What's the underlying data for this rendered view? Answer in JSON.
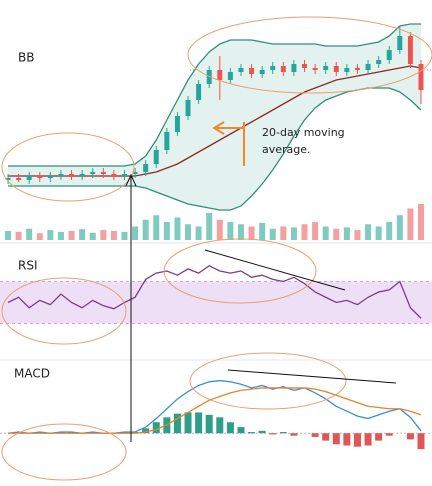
{
  "chart_data": [
    {
      "type": "candlestick",
      "title": "BB",
      "ylim": [
        0,
        100
      ],
      "open": [
        20,
        21,
        20,
        22,
        21,
        22,
        23,
        22,
        23,
        24,
        23,
        22,
        23,
        24,
        28,
        35,
        44,
        52,
        60,
        68,
        75,
        70,
        74,
        76,
        73,
        75,
        77,
        74,
        78,
        76,
        75,
        77,
        74,
        76,
        75,
        78,
        80,
        85,
        92,
        78
      ],
      "high": [
        23,
        23,
        24,
        24,
        24,
        25,
        25,
        25,
        26,
        26,
        25,
        25,
        26,
        30,
        37,
        46,
        54,
        62,
        70,
        77,
        82,
        76,
        78,
        78,
        77,
        79,
        79,
        80,
        80,
        78,
        79,
        79,
        78,
        78,
        80,
        82,
        87,
        97,
        94,
        80
      ],
      "low": [
        18,
        19,
        18,
        19,
        19,
        20,
        20,
        20,
        21,
        21,
        20,
        20,
        21,
        22,
        26,
        33,
        42,
        50,
        58,
        66,
        60,
        68,
        72,
        71,
        71,
        73,
        72,
        72,
        74,
        73,
        73,
        72,
        72,
        73,
        73,
        76,
        78,
        83,
        76,
        58
      ],
      "close": [
        21,
        20,
        22,
        21,
        22,
        23,
        22,
        23,
        24,
        23,
        22,
        23,
        24,
        28,
        35,
        44,
        52,
        60,
        68,
        75,
        70,
        74,
        76,
        73,
        75,
        77,
        74,
        78,
        76,
        75,
        77,
        74,
        76,
        75,
        78,
        80,
        85,
        92,
        78,
        65
      ],
      "up_color": "#26a69a",
      "down_color": "#ef5350",
      "band_fill": "#e3f2ef",
      "lines": [
        {
          "color": "#2f8f7a",
          "values": [
            27,
            27,
            27,
            27,
            27,
            27,
            27,
            27,
            27,
            27,
            27,
            27,
            28,
            32,
            40,
            50,
            60,
            70,
            78,
            84,
            88,
            90,
            90,
            90,
            89,
            88,
            88,
            88,
            88,
            88,
            87,
            87,
            87,
            87,
            88,
            89,
            92,
            97,
            98,
            98
          ]
        },
        {
          "color": "#8b2a2a",
          "values": [
            22,
            22,
            22,
            22,
            22,
            22,
            22,
            22,
            22,
            22,
            22,
            22,
            22,
            23,
            24,
            26,
            28,
            31,
            34,
            37,
            40,
            43,
            46,
            49,
            52,
            55,
            58,
            61,
            64,
            66,
            68,
            70,
            71,
            72,
            73,
            74,
            75,
            76,
            77,
            76
          ]
        },
        {
          "color": "#2f8f7a",
          "values": [
            17,
            17,
            17,
            17,
            17,
            17,
            17,
            17,
            17,
            17,
            17,
            17,
            17,
            16,
            14,
            12,
            10,
            8,
            7,
            6,
            5,
            5,
            7,
            12,
            18,
            25,
            33,
            42,
            50,
            56,
            60,
            62,
            64,
            65,
            66,
            66,
            66,
            64,
            60,
            55
          ]
        }
      ],
      "volume": {
        "ylim": [
          0,
          100
        ],
        "up_color": "#80cbbf",
        "down_color": "#f2a0a0",
        "values": [
          20,
          18,
          25,
          15,
          22,
          18,
          20,
          24,
          16,
          22,
          20,
          18,
          30,
          45,
          55,
          40,
          50,
          35,
          30,
          60,
          45,
          40,
          35,
          30,
          38,
          25,
          30,
          28,
          35,
          40,
          30,
          25,
          28,
          22,
          35,
          30,
          40,
          55,
          70,
          80
        ]
      },
      "annotation": "20-day moving average."
    },
    {
      "type": "line",
      "title": "RSI",
      "ylim": [
        0,
        100
      ],
      "band": [
        30,
        70
      ],
      "band_color": "#eedff7",
      "color": "#7a3e8a",
      "values": [
        50,
        55,
        45,
        52,
        48,
        58,
        50,
        45,
        52,
        47,
        44,
        50,
        55,
        72,
        78,
        80,
        76,
        82,
        78,
        85,
        80,
        78,
        80,
        74,
        76,
        72,
        70,
        74,
        68,
        60,
        55,
        50,
        52,
        48,
        55,
        60,
        62,
        70,
        45,
        35
      ]
    },
    {
      "type": "macd",
      "title": "MACD",
      "ylim": [
        -3,
        5
      ],
      "lines": [
        {
          "color": "#3b8fd6",
          "values": [
            0,
            0.1,
            0,
            0.1,
            0,
            0.1,
            0.1,
            0,
            0.1,
            0,
            0,
            0.1,
            0.1,
            0.5,
            1.2,
            2.0,
            2.8,
            3.4,
            3.9,
            4.2,
            4.3,
            4.2,
            4.0,
            3.7,
            3.9,
            3.6,
            3.8,
            3.5,
            3.7,
            3.3,
            2.8,
            2.2,
            1.8,
            1.4,
            1.2,
            1.5,
            1.8,
            2.0,
            1.3,
            0.2
          ]
        },
        {
          "color": "#e8842c",
          "values": [
            0,
            0,
            0,
            0,
            0,
            0,
            0,
            0,
            0,
            0,
            0,
            0,
            0,
            0.1,
            0.3,
            0.7,
            1.2,
            1.7,
            2.2,
            2.7,
            3.0,
            3.3,
            3.5,
            3.6,
            3.7,
            3.7,
            3.7,
            3.7,
            3.7,
            3.6,
            3.4,
            3.1,
            2.8,
            2.5,
            2.2,
            2.1,
            2.0,
            2.0,
            1.8,
            1.5
          ]
        }
      ],
      "histogram": {
        "up_color": "#2e9e88",
        "down_color": "#e05555",
        "values": [
          0,
          0.1,
          0,
          0.1,
          0,
          0.1,
          0.1,
          0,
          0.1,
          0,
          0,
          0.1,
          0.1,
          0.4,
          0.9,
          1.3,
          1.6,
          1.7,
          1.7,
          1.5,
          1.3,
          0.9,
          0.5,
          0.1,
          0.2,
          -0.1,
          0.1,
          -0.2,
          0,
          -0.3,
          -0.6,
          -0.9,
          -1.0,
          -1.1,
          -1.0,
          -0.6,
          -0.2,
          0,
          -0.5,
          -1.3
        ]
      }
    }
  ]
}
